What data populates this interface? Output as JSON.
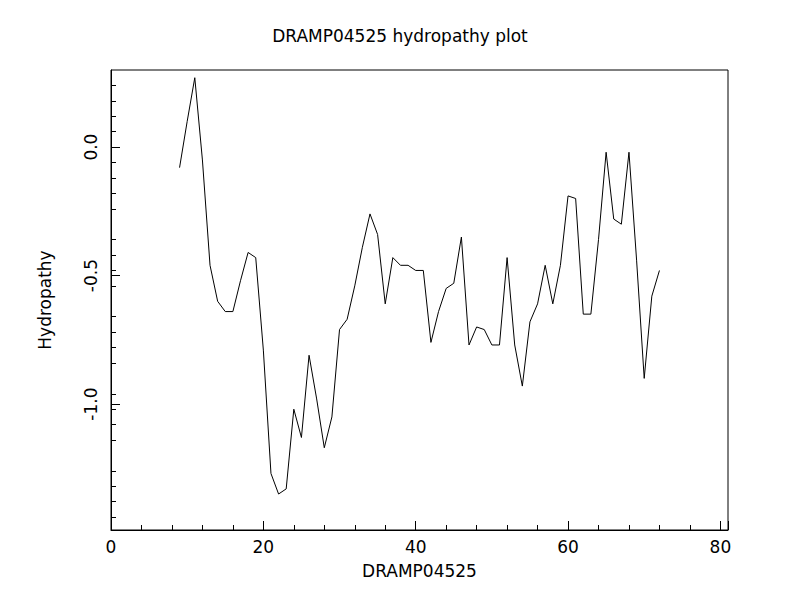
{
  "chart_data": {
    "type": "line",
    "title": "DRAMP04525 hydropathy plot",
    "x_label": "DRAMP04525",
    "y_label": "Hydropathy",
    "x": [
      9,
      10,
      11,
      12,
      13,
      14,
      15,
      16,
      17,
      18,
      19,
      20,
      21,
      22,
      23,
      24,
      25,
      26,
      27,
      28,
      29,
      30,
      31,
      32,
      33,
      34,
      35,
      36,
      37,
      38,
      39,
      40,
      41,
      42,
      43,
      44,
      45,
      46,
      47,
      48,
      49,
      50,
      51,
      52,
      53,
      54,
      55,
      56,
      57,
      58,
      59,
      60,
      61,
      62,
      63,
      64,
      65,
      66,
      67,
      68,
      69,
      70,
      71,
      72
    ],
    "values": [
      -0.08,
      0.1,
      0.27,
      -0.05,
      -0.46,
      -0.6,
      -0.64,
      -0.64,
      -0.52,
      -0.41,
      -0.43,
      -0.79,
      -1.27,
      -1.35,
      -1.33,
      -1.02,
      -1.13,
      -0.81,
      -0.98,
      -1.17,
      -1.05,
      -0.71,
      -0.67,
      -0.54,
      -0.39,
      -0.26,
      -0.34,
      -0.61,
      -0.43,
      -0.46,
      -0.46,
      -0.48,
      -0.48,
      -0.76,
      -0.64,
      -0.55,
      -0.53,
      -0.35,
      -0.77,
      -0.7,
      -0.71,
      -0.77,
      -0.77,
      -0.43,
      -0.77,
      -0.93,
      -0.68,
      -0.61,
      -0.46,
      -0.61,
      -0.46,
      -0.19,
      -0.2,
      -0.65,
      -0.65,
      -0.36,
      -0.02,
      -0.28,
      -0.3,
      -0.02,
      -0.44,
      -0.9,
      -0.58,
      -0.48
    ],
    "color": "#000000",
    "xlim": [
      0,
      81
    ],
    "xticks": [
      0,
      20,
      40,
      60,
      80
    ],
    "ylim": [
      -1.49,
      0.3
    ],
    "yticks": [
      {
        "value": -1.0,
        "label": "-1.0"
      },
      {
        "value": -0.5,
        "label": "-0.5"
      },
      {
        "value": 0,
        "label": "0.0"
      }
    ],
    "grid": false
  }
}
